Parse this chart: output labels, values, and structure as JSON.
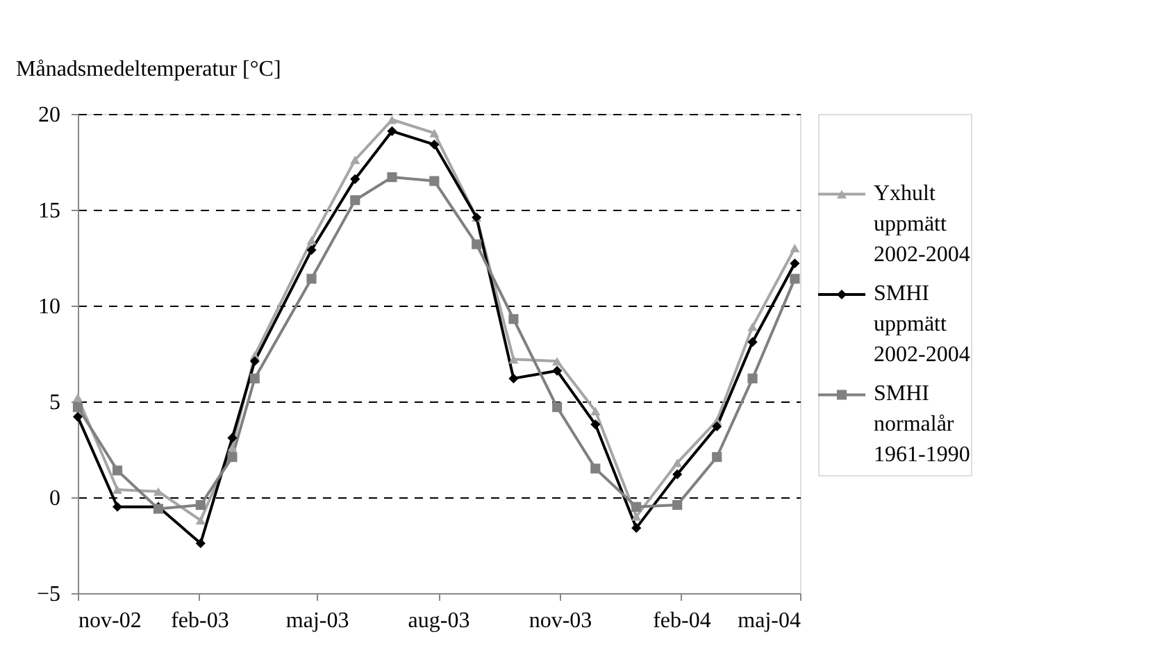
{
  "chart_data": {
    "type": "line",
    "ylabel": "Månadsmedeltemperatur [°C]",
    "x": [
      "2002-11-01",
      "2002-12-01",
      "2003-01-01",
      "2003-02-02",
      "2003-02-26",
      "2003-03-15",
      "2003-04-27",
      "2003-05-30",
      "2003-06-27",
      "2003-07-29",
      "2003-08-30",
      "2003-09-27",
      "2003-10-30",
      "2003-11-28",
      "2003-12-29",
      "2004-01-29",
      "2004-02-28",
      "2004-03-26",
      "2004-04-27"
    ],
    "xlim": [
      "2002-11-01",
      "2004-05-01"
    ],
    "xticks": [
      {
        "value": "2002-11",
        "label": "nov-02"
      },
      {
        "value": "2003-02",
        "label": "feb-03"
      },
      {
        "value": "2003-05",
        "label": "maj-03"
      },
      {
        "value": "2003-08",
        "label": "aug-03"
      },
      {
        "value": "2003-11",
        "label": "nov-03"
      },
      {
        "value": "2004-02",
        "label": "feb-04"
      },
      {
        "value": "2004-05",
        "label": "maj-04"
      }
    ],
    "ylim": [
      -5,
      20
    ],
    "yticks": [
      -5,
      0,
      5,
      10,
      15,
      20
    ],
    "grid": "y",
    "legend": "right",
    "line_style": "solid",
    "series": [
      {
        "name": "Yxhult uppmätt 2002-2004",
        "color": "#a6a6a6",
        "marker": "triangle",
        "values": [
          5.2,
          0.4,
          0.3,
          -1.2,
          2.6,
          7.4,
          13.4,
          17.6,
          19.7,
          19.0,
          14.6,
          7.2,
          7.1,
          4.5,
          -1.0,
          1.8,
          4.0,
          8.9,
          13.0
        ]
      },
      {
        "name": "SMHI uppmätt 2002-2004",
        "color": "#000000",
        "marker": "diamond",
        "values": [
          4.2,
          -0.5,
          -0.5,
          -2.4,
          3.1,
          7.1,
          12.9,
          16.6,
          19.1,
          18.4,
          14.6,
          6.2,
          6.6,
          3.8,
          -1.6,
          1.2,
          3.7,
          8.1,
          12.2
        ]
      },
      {
        "name": "SMHI normalår 1961-1990",
        "color": "#808080",
        "marker": "square",
        "values": [
          4.7,
          1.4,
          -0.6,
          -0.4,
          2.1,
          6.2,
          11.4,
          15.5,
          16.7,
          16.5,
          13.2,
          9.3,
          4.7,
          1.5,
          -0.5,
          -0.4,
          2.1,
          6.2,
          11.4
        ]
      }
    ]
  }
}
